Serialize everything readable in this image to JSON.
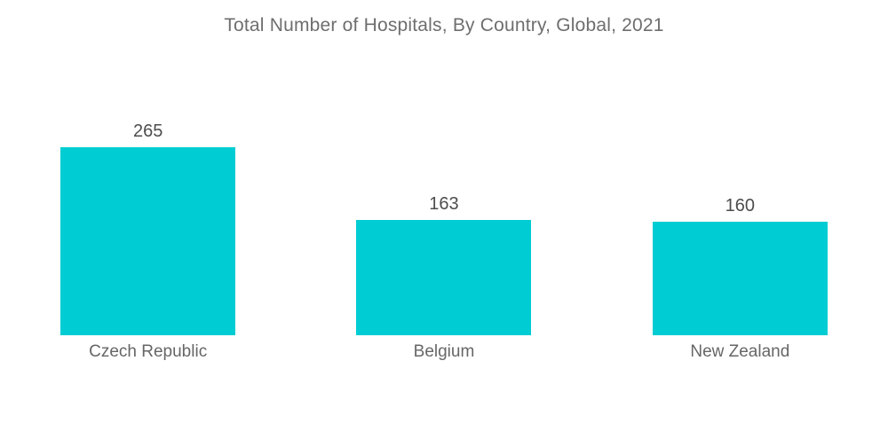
{
  "title": "Total Number of Hospitals, By Country, Global, 2021",
  "chart_data": {
    "type": "bar",
    "title": "Total Number of Hospitals, By Country, Global, 2021",
    "categories": [
      "Czech Republic",
      "Belgium",
      "New Zealand"
    ],
    "values": [
      265,
      163,
      160
    ],
    "xlabel": "",
    "ylabel": "",
    "ylim": [
      0,
      265
    ],
    "grid": false,
    "legend": "none",
    "value_labels_shown": true
  },
  "colors": {
    "bar": "#00CDD3",
    "title_text": "#6E6E6E",
    "value_text": "#4D4D4D",
    "category_text": "#666666",
    "background": "#FFFFFF"
  }
}
